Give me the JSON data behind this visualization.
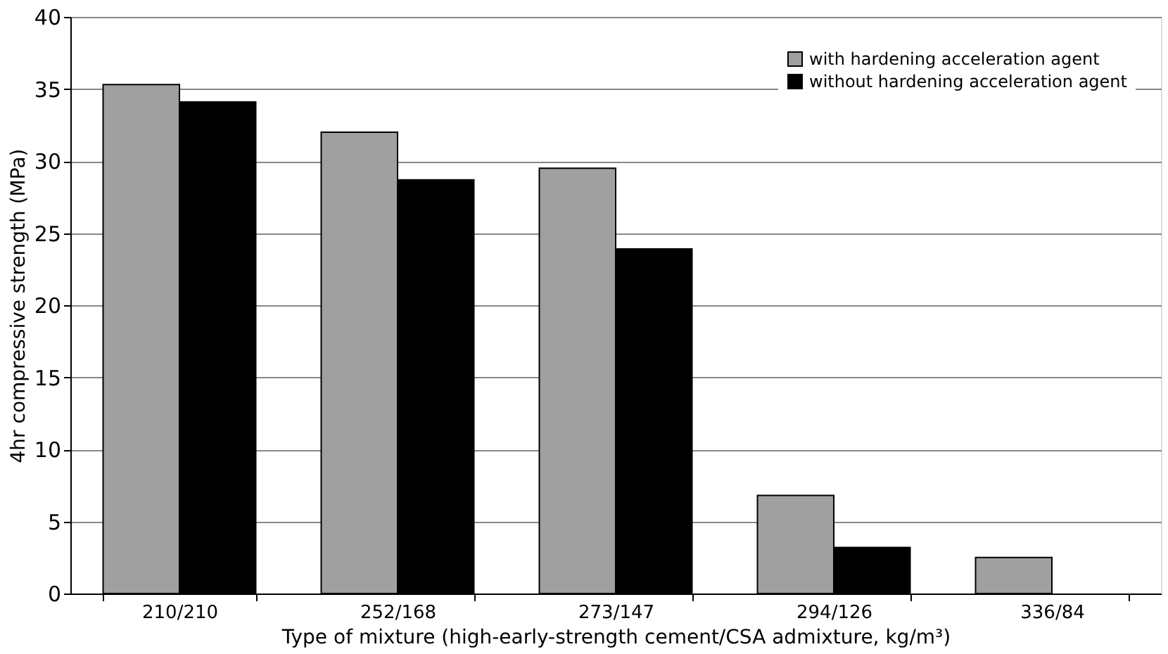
{
  "chart_data": {
    "type": "bar",
    "xlabel": "Type of mixture (high-early-strength cement/CSA admixture, kg/m³)",
    "ylabel": "4hr compressive strength (MPa)",
    "categories": [
      "210/210",
      "252/168",
      "273/147",
      "294/126",
      "336/84"
    ],
    "series": [
      {
        "name": "with hardening acceleration agent",
        "color": "#a0a0a0",
        "values": [
          35.3,
          32.0,
          29.5,
          6.8,
          2.5
        ]
      },
      {
        "name": "without hardening acceleration agent",
        "color": "#000000",
        "values": [
          34.1,
          28.7,
          23.9,
          3.2,
          null
        ]
      }
    ],
    "ylim": [
      0,
      40
    ],
    "yticks": [
      0,
      5,
      10,
      15,
      20,
      25,
      30,
      35,
      40
    ],
    "grid": "y",
    "legend": "top right"
  }
}
